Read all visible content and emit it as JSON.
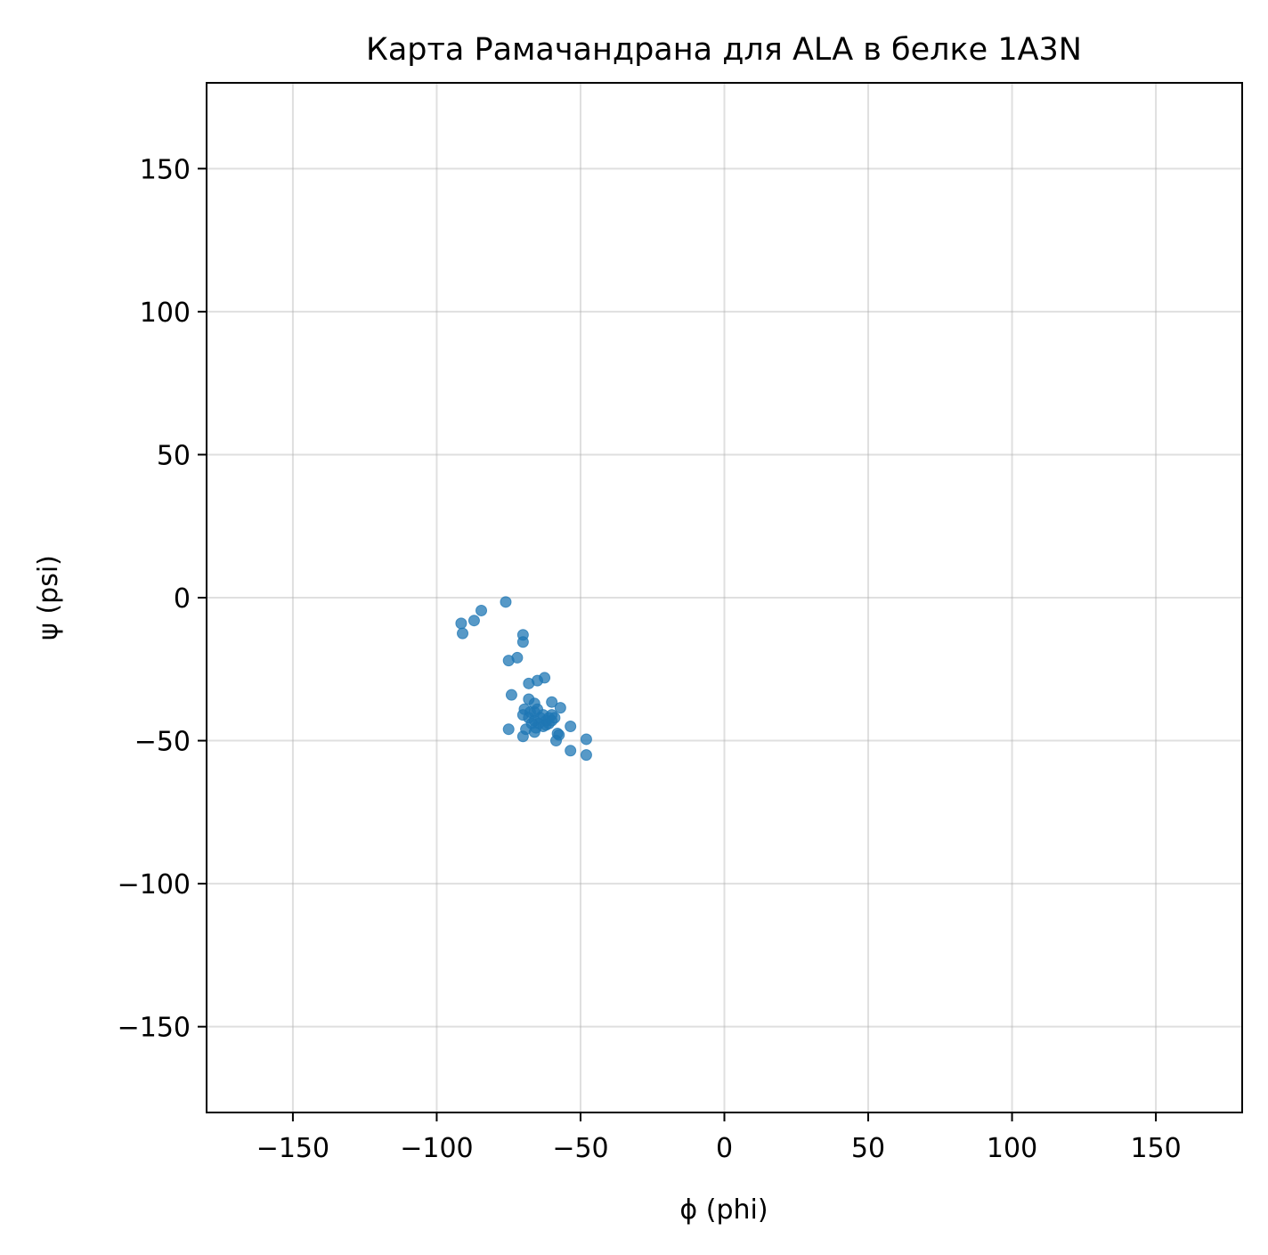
{
  "chart_data": {
    "type": "scatter",
    "title": "Карта Рамачандрана для ALA в белке 1A3N",
    "xlabel": "ϕ (phi)",
    "ylabel": "ψ (psi)",
    "xlim": [
      -180,
      180
    ],
    "ylim": [
      -180,
      180
    ],
    "xticks": [
      -150,
      -100,
      -50,
      0,
      50,
      100,
      150
    ],
    "yticks": [
      -150,
      -100,
      -50,
      0,
      50,
      100,
      150
    ],
    "xtick_labels": [
      "−150",
      "−100",
      "−50",
      "0",
      "50",
      "100",
      "150"
    ],
    "ytick_labels": [
      "−150",
      "−100",
      "−50",
      "0",
      "50",
      "100",
      "150"
    ],
    "grid": true,
    "series": [
      {
        "color": "#1f77b4",
        "opacity": 0.75,
        "points": [
          [
            -76,
            -1.5
          ],
          [
            -84.5,
            -4.5
          ],
          [
            -87,
            -8
          ],
          [
            -91.5,
            -9
          ],
          [
            -91,
            -12.5
          ],
          [
            -70,
            -13
          ],
          [
            -70,
            -15.5
          ],
          [
            -72,
            -21
          ],
          [
            -75,
            -22
          ],
          [
            -62.5,
            -28
          ],
          [
            -65,
            -29
          ],
          [
            -68,
            -30
          ],
          [
            -74,
            -34
          ],
          [
            -68,
            -35.5
          ],
          [
            -66,
            -37
          ],
          [
            -60,
            -36.5
          ],
          [
            -57,
            -38.5
          ],
          [
            -69.5,
            -39
          ],
          [
            -70,
            -41
          ],
          [
            -67.5,
            -40
          ],
          [
            -66,
            -40
          ],
          [
            -65,
            -39
          ],
          [
            -64,
            -42
          ],
          [
            -63,
            -41
          ],
          [
            -62,
            -43
          ],
          [
            -61,
            -42
          ],
          [
            -60,
            -41
          ],
          [
            -66,
            -43
          ],
          [
            -64.5,
            -44
          ],
          [
            -63,
            -45
          ],
          [
            -62,
            -44.5
          ],
          [
            -65.5,
            -45.5
          ],
          [
            -67,
            -44
          ],
          [
            -61,
            -44
          ],
          [
            -60,
            -43
          ],
          [
            -68,
            -42
          ],
          [
            -59,
            -42
          ],
          [
            -69,
            -46
          ],
          [
            -66,
            -47
          ],
          [
            -75,
            -46
          ],
          [
            -70,
            -48.5
          ],
          [
            -58,
            -47.5
          ],
          [
            -57.5,
            -48
          ],
          [
            -53.5,
            -45
          ],
          [
            -58.5,
            -50
          ],
          [
            -48,
            -49.5
          ],
          [
            -53.5,
            -53.5
          ],
          [
            -48,
            -55
          ]
        ]
      }
    ]
  }
}
